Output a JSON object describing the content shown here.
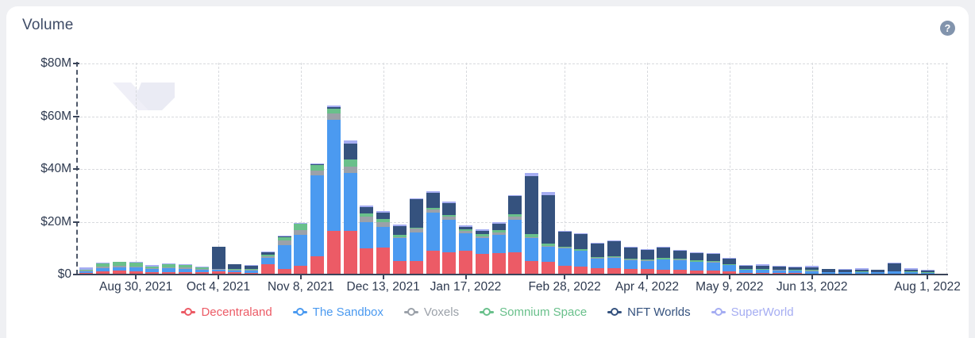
{
  "card": {
    "title": "Volume",
    "help_icon": "?"
  },
  "colors": {
    "page_bg": "#eff0f3",
    "card_bg": "#ffffff",
    "axis": "#3a4459",
    "grid": "#d8dade",
    "help_icon_bg": "#8294ad",
    "title_text": "#3e4b66",
    "watermark": "#eeeef6"
  },
  "chart_data": {
    "type": "bar",
    "stacked": true,
    "title": "Volume",
    "unit": "million USD per weekly bar",
    "grid": true,
    "legend_position": "bottom",
    "ylim_millions": [
      0,
      80
    ],
    "y_ticks": [
      {
        "value": 0,
        "label": "$0"
      },
      {
        "value": 20,
        "label": "$20M"
      },
      {
        "value": 40,
        "label": "$40M"
      },
      {
        "value": 60,
        "label": "$60M"
      },
      {
        "value": 80,
        "label": "$80M"
      }
    ],
    "bar_count": 52,
    "x_ticks": [
      {
        "label": "Aug 30, 2021",
        "bar_index": 3
      },
      {
        "label": "Oct 4, 2021",
        "bar_index": 8
      },
      {
        "label": "Nov 8, 2021",
        "bar_index": 13
      },
      {
        "label": "Dec 13, 2021",
        "bar_index": 18
      },
      {
        "label": "Jan 17, 2022",
        "bar_index": 23
      },
      {
        "label": "Feb 28, 2022",
        "bar_index": 29
      },
      {
        "label": "Apr 4, 2022",
        "bar_index": 34
      },
      {
        "label": "May 9, 2022",
        "bar_index": 39
      },
      {
        "label": "Jun 13, 2022",
        "bar_index": 44
      },
      {
        "label": "Aug 1, 2022",
        "bar_index": 51
      }
    ],
    "series": [
      {
        "name": "Decentraland",
        "color": "#ec5b66",
        "values": [
          0.6,
          1.3,
          1.6,
          1.2,
          0.9,
          1.0,
          1.0,
          0.8,
          1.2,
          0.8,
          0.7,
          4.0,
          2.2,
          3.4,
          6.9,
          16.5,
          16.6,
          10.0,
          10.2,
          5.0,
          5.0,
          8.9,
          8.4,
          9.0,
          7.7,
          8.1,
          8.4,
          5.1,
          4.9,
          3.4,
          2.9,
          2.4,
          2.4,
          2.0,
          2.0,
          1.9,
          1.7,
          1.5,
          1.5,
          1.2,
          0.6,
          0.6,
          0.5,
          0.5,
          0.4,
          0.3,
          0.3,
          0.3,
          0.3,
          0.4,
          0.3,
          0.2
        ]
      },
      {
        "name": "The Sandbox",
        "color": "#4b9af0",
        "values": [
          0.7,
          1.1,
          1.2,
          1.4,
          1.1,
          1.3,
          1.2,
          0.9,
          0.5,
          0.7,
          0.8,
          2.2,
          8.9,
          11.5,
          30.6,
          42.0,
          21.9,
          10.0,
          7.8,
          8.7,
          10.8,
          14.5,
          12.5,
          6.6,
          6.0,
          7.0,
          12.5,
          8.8,
          5.5,
          6.5,
          6.0,
          3.7,
          4.0,
          3.4,
          3.2,
          3.7,
          3.7,
          3.2,
          3.0,
          2.3,
          1.2,
          1.2,
          1.1,
          1.0,
          0.8,
          0.5,
          0.5,
          0.6,
          0.5,
          0.7,
          0.6,
          0.4
        ]
      },
      {
        "name": "Voxels",
        "color": "#9ba1a9",
        "values": [
          0.3,
          0.5,
          0.5,
          0.5,
          0.4,
          0.4,
          0.5,
          0.4,
          0.3,
          0.3,
          0.3,
          0.6,
          1.8,
          2.0,
          1.8,
          2.7,
          2.5,
          2.0,
          1.9,
          0.5,
          1.5,
          1.3,
          1.0,
          1.0,
          0.7,
          0.8,
          1.0,
          0.3,
          0.3,
          0.2,
          0.2,
          0.2,
          0.2,
          0.2,
          0.2,
          0.2,
          0.2,
          0.2,
          0.2,
          0.2,
          0.1,
          0.1,
          0.1,
          0.1,
          0.3,
          0.1,
          0.1,
          0.1,
          0.1,
          0.1,
          0.1,
          0.1
        ]
      },
      {
        "name": "Somnium Space",
        "color": "#69c08b",
        "values": [
          0.1,
          1.3,
          1.4,
          1.3,
          0.6,
          1.1,
          0.9,
          0.5,
          0.1,
          0.2,
          0.2,
          0.6,
          1.3,
          2.3,
          2.2,
          1.6,
          2.5,
          1.3,
          1.2,
          0.8,
          0.5,
          0.7,
          0.7,
          0.6,
          0.8,
          0.8,
          1.0,
          1.2,
          1.0,
          0.5,
          0.4,
          0.3,
          0.3,
          0.3,
          0.3,
          0.5,
          0.5,
          0.4,
          0.4,
          0.3,
          0.2,
          0.2,
          0.2,
          0.2,
          0.2,
          0.1,
          0.1,
          0.1,
          0.1,
          0.1,
          0.1,
          0.1
        ]
      },
      {
        "name": "NFT Worlds",
        "color": "#35527e",
        "values": [
          0.1,
          0.0,
          0.0,
          0.1,
          0.1,
          0.1,
          0.1,
          0.1,
          8.3,
          1.8,
          1.4,
          1.0,
          0.2,
          0.2,
          0.2,
          0.6,
          6.0,
          2.3,
          2.5,
          3.5,
          10.8,
          5.7,
          4.5,
          0.9,
          1.4,
          2.6,
          6.8,
          22.0,
          18.5,
          5.5,
          5.8,
          5.0,
          5.7,
          4.3,
          3.6,
          4.0,
          3.0,
          2.8,
          2.7,
          2.0,
          1.2,
          1.3,
          1.2,
          1.0,
          0.9,
          1.0,
          0.8,
          0.7,
          0.7,
          3.0,
          0.8,
          0.7
        ]
      },
      {
        "name": "SuperWorld",
        "color": "#a5adf2",
        "values": [
          0.8,
          0.2,
          0.2,
          0.2,
          0.5,
          0.2,
          0.2,
          0.2,
          0.2,
          0.2,
          0.2,
          0.2,
          0.3,
          0.3,
          0.5,
          0.6,
          1.2,
          0.7,
          0.5,
          0.4,
          0.4,
          0.6,
          0.6,
          0.5,
          0.5,
          0.5,
          0.5,
          1.0,
          1.0,
          0.5,
          0.5,
          0.4,
          0.4,
          0.3,
          0.4,
          0.3,
          0.3,
          0.3,
          0.3,
          0.3,
          0.2,
          0.4,
          0.2,
          0.2,
          0.6,
          0.2,
          0.2,
          0.6,
          0.2,
          0.2,
          0.6,
          0.2
        ]
      }
    ]
  }
}
